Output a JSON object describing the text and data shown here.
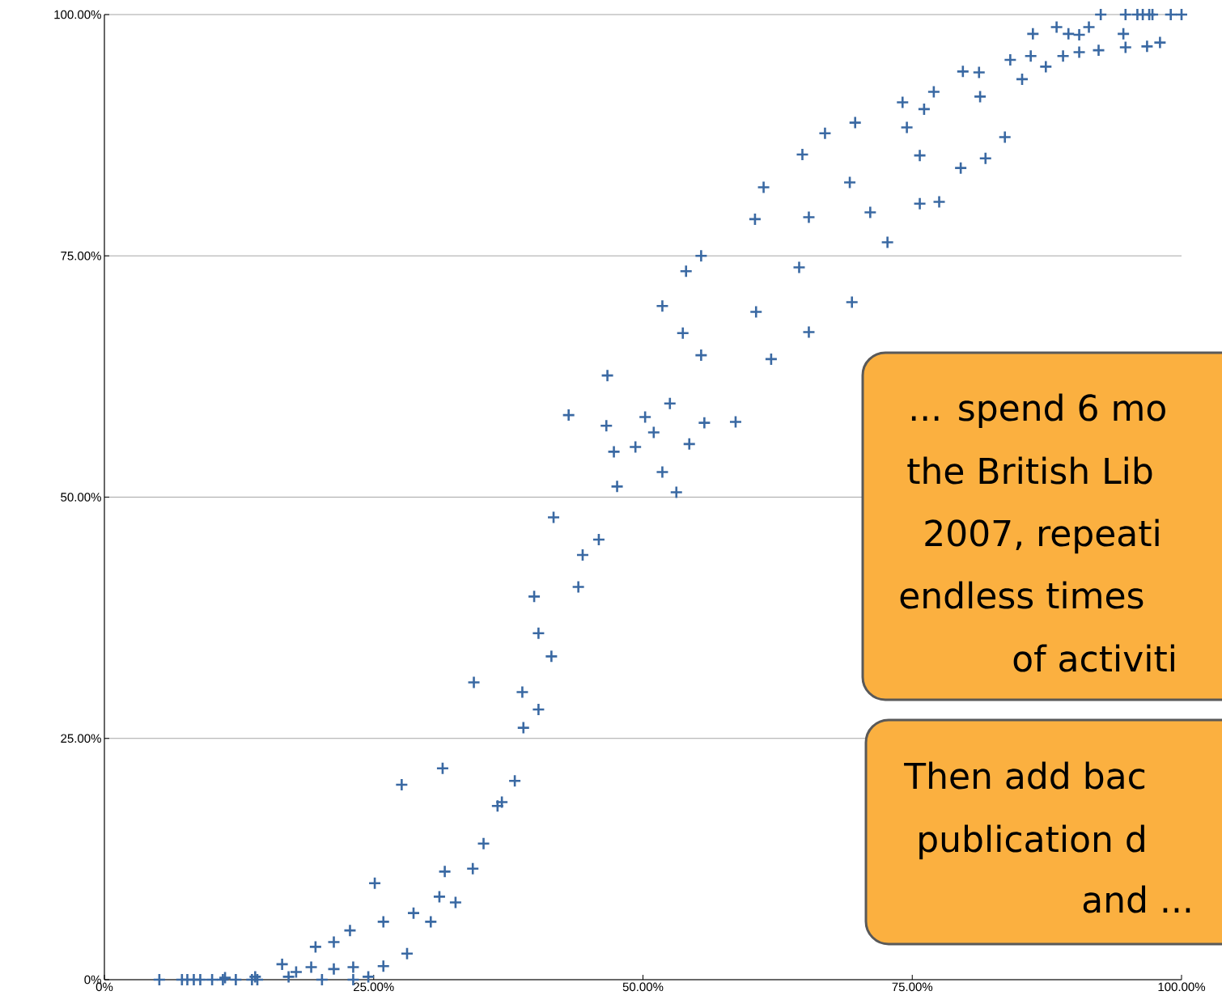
{
  "chart_data": {
    "type": "scatter",
    "color": "#3a69a3",
    "marker": "cross",
    "grid": "y",
    "xlim": [
      0,
      100
    ],
    "ylim": [
      0,
      100
    ],
    "xticks": [
      {
        "value": 0,
        "label": "0%"
      },
      {
        "value": 25,
        "label": "25.00%"
      },
      {
        "value": 50,
        "label": "50.00%"
      },
      {
        "value": 75,
        "label": "75.00%"
      },
      {
        "value": 100,
        "label": "100.00%"
      }
    ],
    "yticks": [
      {
        "value": 0,
        "label": "0%"
      },
      {
        "value": 25,
        "label": "25.00%"
      },
      {
        "value": 50,
        "label": "50.00%"
      },
      {
        "value": 75,
        "label": "75.00%"
      },
      {
        "value": 100,
        "label": "100.00%"
      }
    ],
    "x": [
      5.1,
      7.2,
      7.7,
      8.3,
      8.9,
      10.0,
      11.0,
      11.2,
      12.2,
      13.7,
      14.0,
      14.2,
      16.5,
      17.1,
      17.8,
      19.2,
      19.6,
      20.2,
      21.3,
      21.3,
      22.8,
      23.1,
      23.1,
      24.5,
      25.1,
      25.9,
      25.9,
      27.6,
      28.1,
      28.7,
      30.3,
      31.1,
      31.4,
      31.6,
      32.6,
      34.2,
      34.3,
      35.2,
      36.5,
      36.9,
      38.1,
      38.8,
      38.9,
      39.9,
      40.3,
      40.3,
      41.5,
      41.7,
      43.1,
      44.0,
      44.4,
      45.9,
      46.6,
      46.7,
      47.3,
      47.6,
      49.3,
      50.2,
      51.0,
      51.8,
      51.8,
      52.5,
      53.1,
      53.7,
      54.0,
      54.3,
      55.4,
      55.4,
      55.7,
      58.6,
      60.4,
      60.5,
      61.2,
      61.9,
      64.5,
      64.8,
      65.4,
      65.4,
      66.9,
      69.2,
      69.4,
      69.7,
      71.1,
      72.7,
      74.1,
      74.5,
      75.7,
      75.7,
      76.1,
      77.0,
      77.5,
      79.5,
      79.7,
      81.2,
      81.3,
      81.8,
      83.6,
      84.1,
      85.2,
      86.0,
      86.2,
      87.4,
      88.4,
      89.0,
      89.5,
      90.5,
      90.5,
      91.4,
      92.3,
      92.5,
      94.6,
      94.8,
      94.8,
      95.9,
      96.4,
      96.8,
      97.0,
      97.3,
      98.0,
      99.0,
      100
    ],
    "values": [
      0,
      0,
      0,
      0,
      0,
      0,
      0,
      0.2,
      0,
      0,
      0.3,
      0,
      1.6,
      0.3,
      0.8,
      1.3,
      3.4,
      0,
      1.1,
      3.9,
      5.1,
      1.3,
      0,
      0.3,
      10.0,
      1.4,
      6.0,
      20.2,
      2.7,
      6.9,
      6.0,
      8.6,
      21.9,
      11.2,
      8.0,
      11.5,
      30.8,
      14.1,
      18.0,
      18.4,
      20.6,
      29.8,
      26.1,
      39.7,
      28.0,
      35.9,
      33.5,
      47.9,
      58.5,
      40.7,
      44.0,
      45.6,
      57.4,
      62.6,
      54.7,
      51.1,
      55.2,
      58.3,
      56.7,
      52.6,
      69.8,
      59.7,
      50.5,
      67.0,
      73.4,
      55.5,
      64.7,
      75.0,
      57.7,
      57.8,
      78.8,
      69.2,
      82.1,
      64.3,
      73.8,
      85.5,
      67.1,
      79.0,
      87.7,
      82.6,
      70.2,
      88.8,
      79.5,
      76.4,
      90.9,
      88.3,
      85.4,
      80.4,
      90.2,
      92.0,
      80.6,
      84.1,
      94.1,
      94.0,
      91.5,
      85.1,
      87.3,
      95.3,
      93.3,
      95.7,
      98.0,
      94.6,
      98.7,
      95.7,
      98.0,
      96.1,
      97.9,
      98.7,
      96.3,
      100,
      98.0,
      96.6,
      100,
      100,
      100,
      96.7,
      100,
      100,
      97.1,
      100,
      100
    ],
    "annotations": [
      "... spend 6 mo",
      "the British Lib",
      "2007, repeati",
      "endless times",
      "of activiti",
      "Then add bac",
      "publication d",
      "and ..."
    ]
  }
}
